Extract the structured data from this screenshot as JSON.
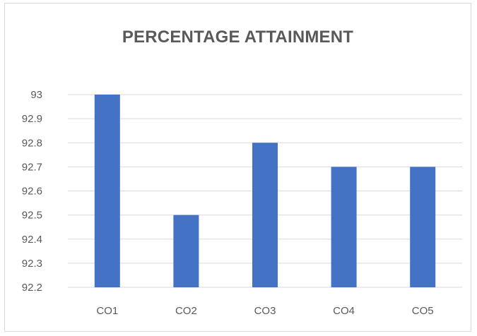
{
  "chart_data": {
    "type": "bar",
    "title": "PERCENTAGE ATTAINMENT",
    "categories": [
      "CO1",
      "CO2",
      "CO3",
      "CO4",
      "CO5"
    ],
    "values": [
      93,
      92.5,
      92.8,
      92.7,
      92.7
    ],
    "ylim": [
      92.2,
      93
    ],
    "yticks": [
      "92.2",
      "92.3",
      "92.4",
      "92.5",
      "92.6",
      "92.7",
      "92.8",
      "92.9",
      "93"
    ],
    "grid": true,
    "bar_color": "#4472c4",
    "grid_color": "#d9d9d9",
    "xlabel": "",
    "ylabel": ""
  }
}
